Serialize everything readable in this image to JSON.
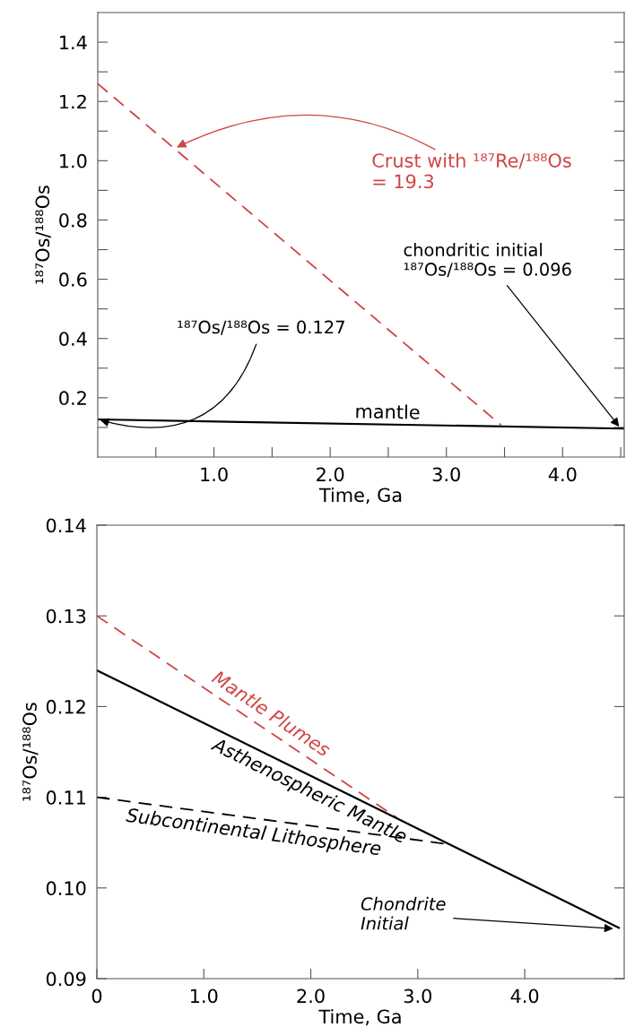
{
  "chart_data": [
    {
      "type": "line",
      "xlabel": "Time, Ga",
      "ylabel": "¹⁸⁷Os/¹⁸⁸Os",
      "xlim": [
        0,
        4.53
      ],
      "ylim": [
        0,
        1.5
      ],
      "xticks": [
        {
          "value": 0.5,
          "label": null
        },
        {
          "value": 1.0,
          "label": "1.0"
        },
        {
          "value": 1.5,
          "label": null
        },
        {
          "value": 2.0,
          "label": "2.0"
        },
        {
          "value": 2.5,
          "label": null
        },
        {
          "value": 3.0,
          "label": "3.0"
        },
        {
          "value": 3.5,
          "label": null
        },
        {
          "value": 4.0,
          "label": "4.0"
        },
        {
          "value": 4.5,
          "label": null
        }
      ],
      "yticks": [
        {
          "value": 0.1,
          "label": null
        },
        0.2,
        {
          "value": 0.3,
          "label": null
        },
        0.4,
        {
          "value": 0.5,
          "label": null
        },
        0.6,
        {
          "value": 0.7,
          "label": null
        },
        0.8,
        {
          "value": 0.9,
          "label": null
        },
        {
          "value": 1.0,
          "label": "1.0"
        },
        {
          "value": 1.1,
          "label": null
        },
        1.2,
        {
          "value": 1.3,
          "label": null
        },
        1.4
      ],
      "series": [
        {
          "name": "mantle",
          "color": "#000000",
          "line_style": "solid",
          "x": [
            0,
            4.53
          ],
          "values": [
            0.127,
            0.096
          ]
        },
        {
          "name": "Crust with ¹⁸⁷Re/¹⁸⁸Os\n= 19.3",
          "color": "#d04545",
          "line_style": "dashed",
          "x": [
            0,
            3.47
          ],
          "values": [
            1.26,
            0.108
          ]
        }
      ],
      "annotations": [
        {
          "text": "¹⁸⁷Os/¹⁸⁸Os = 0.127",
          "x": 0,
          "y": 0.127
        },
        {
          "text": "chondritic initial\n¹⁸⁷Os/¹⁸⁸Os = 0.096",
          "x": 4.5,
          "y": 0.096
        }
      ]
    },
    {
      "type": "line",
      "xlabel": "Time, Ga",
      "ylabel": "¹⁸⁷Os/¹⁸⁸Os",
      "xlim": [
        0,
        4.93
      ],
      "ylim": [
        0.09,
        0.14
      ],
      "xticks": [
        0,
        {
          "value": 1.0,
          "label": "1.0"
        },
        {
          "value": 2.0,
          "label": "2.0"
        },
        {
          "value": 3.0,
          "label": "3.0"
        },
        {
          "value": 4.0,
          "label": "4.0"
        }
      ],
      "yticks": [
        0.09,
        {
          "value": 0.1,
          "label": "0.10"
        },
        0.11,
        0.12,
        0.13,
        0.14
      ],
      "series": [
        {
          "name": "Mantle Plumes",
          "color": "#d04545",
          "line_style": "dashed",
          "x": [
            0,
            2.81
          ],
          "values": [
            0.13,
            0.1077
          ]
        },
        {
          "name": "Asthenospheric Mantle",
          "color": "#000000",
          "line_style": "solid",
          "x": [
            0,
            4.88
          ],
          "values": [
            0.124,
            0.0956
          ]
        },
        {
          "name": "Subcontinental Lithosphere",
          "color": "#000000",
          "line_style": "dashed",
          "x": [
            0,
            3.3
          ],
          "values": [
            0.11,
            0.1048
          ]
        }
      ],
      "annotations": [
        {
          "text": "Chondrite\nInitial",
          "x": 4.85,
          "y": 0.0955
        }
      ]
    }
  ]
}
